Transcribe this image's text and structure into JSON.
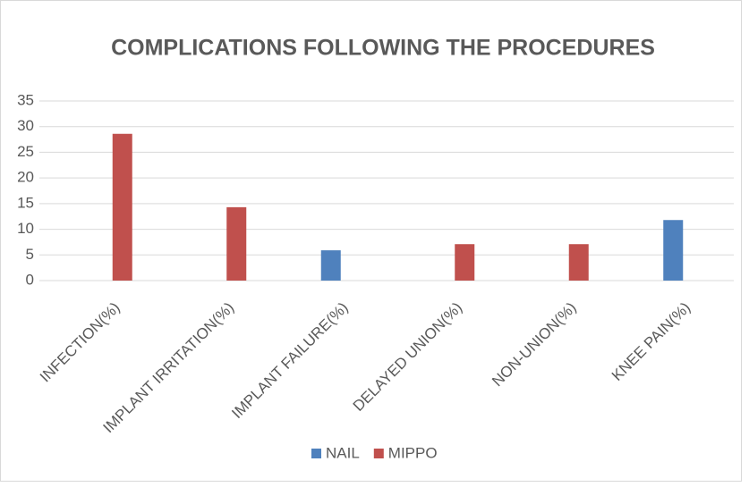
{
  "chart_data": {
    "type": "bar",
    "title": "COMPLICATIONS FOLLOWING THE PROCEDURES",
    "categories": [
      "INFECTION(%)",
      "IMPLANT IRRITATION(%)",
      "IMPLANT FAILURE(%)",
      "DELAYED UNION(%)",
      "NON-UNION(%)",
      "KNEE PAIN(%)"
    ],
    "series": [
      {
        "name": "NAIL",
        "color": "#4f81bd",
        "values": [
          0,
          0,
          5.9,
          0,
          0,
          11.8
        ]
      },
      {
        "name": "MIPPO",
        "color": "#c0504d",
        "values": [
          28.6,
          14.3,
          0,
          7.1,
          7.1,
          0
        ]
      }
    ],
    "ylim": [
      0,
      35
    ],
    "yticks": [
      0,
      5,
      10,
      15,
      20,
      25,
      30,
      35
    ],
    "grid": true,
    "legend": "bottom"
  }
}
